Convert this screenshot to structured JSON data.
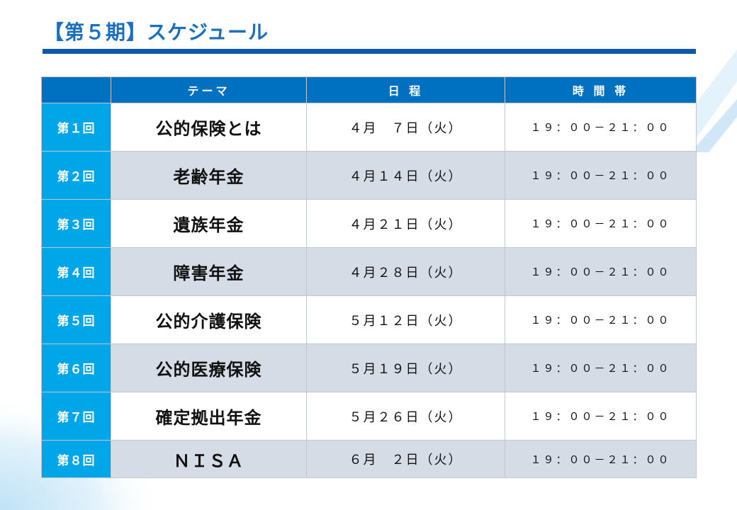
{
  "title": "【第５期】スケジュール",
  "table": {
    "headers": [
      "",
      "テーマ",
      "日 程",
      "時 間 帯"
    ],
    "rows": [
      {
        "session": "第１回",
        "theme": "公的保険とは",
        "date": "４月　７日（火）",
        "time": "１９：００－２１：００"
      },
      {
        "session": "第２回",
        "theme": "老齢年金",
        "date": "４月１４日（火）",
        "time": "１９：００－２１：００"
      },
      {
        "session": "第３回",
        "theme": "遺族年金",
        "date": "４月２１日（火）",
        "time": "１９：００－２１：００"
      },
      {
        "session": "第４回",
        "theme": "障害年金",
        "date": "４月２８日（火）",
        "time": "１９：００－２１：００"
      },
      {
        "session": "第５回",
        "theme": "公的介護保険",
        "date": "５月１２日（火）",
        "time": "１９：００－２１：００"
      },
      {
        "session": "第６回",
        "theme": "公的医療保険",
        "date": "５月１９日（火）",
        "time": "１９：００－２１：００"
      },
      {
        "session": "第７回",
        "theme": "確定拠出年金",
        "date": "５月２６日（火）",
        "time": "１９：００－２１：００"
      },
      {
        "session": "第８回",
        "theme": "ＮＩＳＡ",
        "date": "６月　２日（火）",
        "time": "１９：００－２１：００"
      }
    ]
  },
  "colors": {
    "title_text": "#1a6fbe",
    "title_rule": "#0f57a8",
    "header_bg": "#0070c0",
    "session_bg": "#00a6e8",
    "row_alt_bg": "#d6dce5"
  }
}
